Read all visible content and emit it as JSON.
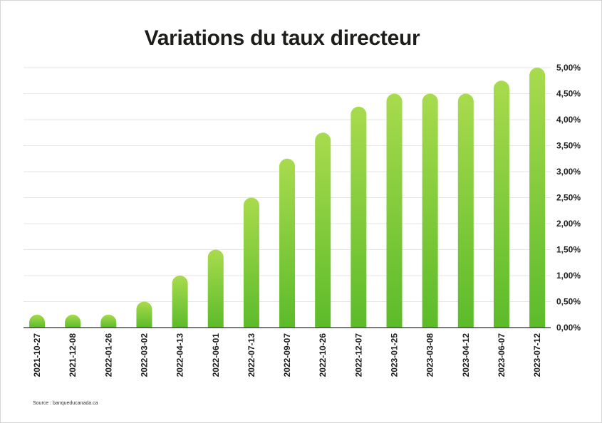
{
  "chart_data": {
    "type": "bar",
    "title": "Variations du taux directeur",
    "xlabel": "",
    "ylabel": "",
    "y_axis_position": "right",
    "ylim": [
      0,
      5
    ],
    "yticks": [
      "0,00%",
      "0,50%",
      "1,00%",
      "1,50%",
      "2,00%",
      "2,50%",
      "3,00%",
      "3,50%",
      "4,00%",
      "4,50%",
      "5,00%"
    ],
    "grid": true,
    "categories": [
      "2021-10-27",
      "2021-12-08",
      "2022-01-26",
      "2022-03-02",
      "2022-04-13",
      "2022-06-01",
      "2022-07-13",
      "2022-09-07",
      "2022-10-26",
      "2022-12-07",
      "2023-01-25",
      "2023-03-08",
      "2023-04-12",
      "2023-06-07",
      "2023-07-12"
    ],
    "values": [
      0.25,
      0.25,
      0.25,
      0.5,
      1.0,
      1.5,
      2.5,
      3.25,
      3.75,
      4.25,
      4.5,
      4.5,
      4.5,
      4.75,
      5.0
    ],
    "colors": {
      "bar_top": "#a8db4d",
      "bar_bottom": "#5cbb2a",
      "grid": "#e6e6e6",
      "axis": "#2b2b2b"
    }
  },
  "source": "Source : banqueducanada.ca"
}
